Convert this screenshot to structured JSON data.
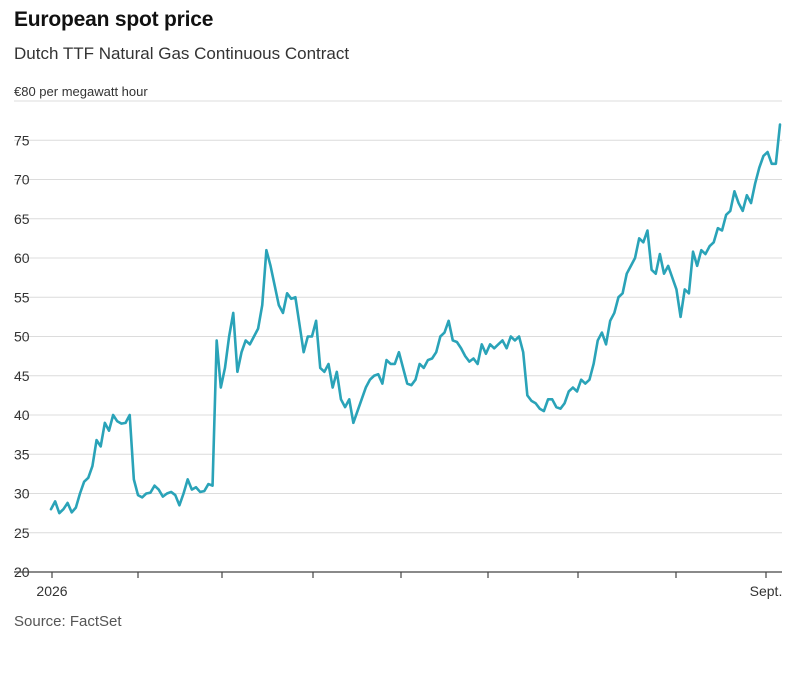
{
  "header": {
    "title": "European spot price",
    "subtitle": "Dutch TTF Natural Gas Continuous Contract",
    "unit_label": "€80 per megawatt hour"
  },
  "footer": {
    "source": "Source: FactSet"
  },
  "colors": {
    "line": "#2aa3b8",
    "grid": "#dcdcdc",
    "axis": "#444444"
  },
  "chart_data": {
    "type": "line",
    "title": "European spot price",
    "subtitle": "Dutch TTF Natural Gas Continuous Contract",
    "ylabel": "",
    "xlabel": "",
    "ylim": [
      20,
      80
    ],
    "yticks": [
      20,
      25,
      30,
      35,
      40,
      45,
      50,
      55,
      60,
      65,
      70,
      75
    ],
    "ytick_labels": [
      "20",
      "25",
      "30",
      "35",
      "40",
      "45",
      "50",
      "55",
      "60",
      "65",
      "70",
      "75"
    ],
    "x_tick_labels": [
      "2026",
      "",
      "",
      "",
      "",
      "",
      "",
      "",
      "Sept."
    ],
    "grid": true,
    "series": [
      {
        "values": [
          28.0,
          29.0,
          27.5,
          28.0,
          28.8,
          27.6,
          28.2,
          30.0,
          31.5,
          32.0,
          33.5,
          36.8,
          36.0,
          39.0,
          38.0,
          40.0,
          39.2,
          38.9,
          39.0,
          40.0,
          31.8,
          29.8,
          29.5,
          30.0,
          30.1,
          31.0,
          30.5,
          29.6,
          30.0,
          30.2,
          29.8,
          28.5,
          30.0,
          31.8,
          30.5,
          30.8,
          30.2,
          30.3,
          31.2,
          31.0,
          49.5,
          43.5,
          46.0,
          50.0,
          53.0,
          45.5,
          48.0,
          49.5,
          49.0,
          50.0,
          51.0,
          54.0,
          61.0,
          59.0,
          56.5,
          54.0,
          53.0,
          55.5,
          54.8,
          55.0,
          51.5,
          48.0,
          50.0,
          50.0,
          52.0,
          46.0,
          45.5,
          46.5,
          43.5,
          45.5,
          42.0,
          41.0,
          42.0,
          39.0,
          40.5,
          42.0,
          43.5,
          44.5,
          45.0,
          45.2,
          44.0,
          47.0,
          46.5,
          46.5,
          48.0,
          46.0,
          44.0,
          43.8,
          44.5,
          46.5,
          46.0,
          47.0,
          47.2,
          48.0,
          50.0,
          50.5,
          52.0,
          49.5,
          49.3,
          48.5,
          47.5,
          46.8,
          47.2,
          46.5,
          49.0,
          47.8,
          49.0,
          48.5,
          49.0,
          49.5,
          48.5,
          50.0,
          49.5,
          50.0,
          48.0,
          42.5,
          41.8,
          41.5,
          40.8,
          40.5,
          42.0,
          42.0,
          41.0,
          40.8,
          41.5,
          43.0,
          43.5,
          43.0,
          44.5,
          44.0,
          44.5,
          46.5,
          49.5,
          50.5,
          49.0,
          52.0,
          53.0,
          55.0,
          55.5,
          58.0,
          59.0,
          60.0,
          62.5,
          62.0,
          63.5,
          58.5,
          58.0,
          60.5,
          58.0,
          59.0,
          57.5,
          56.0,
          52.5,
          56.0,
          55.5,
          60.8,
          59.0,
          61.0,
          60.5,
          61.5,
          62.0,
          63.8,
          63.5,
          65.5,
          66.0,
          68.5,
          67.0,
          66.0,
          68.0,
          67.0,
          69.5,
          71.5,
          73.0,
          73.5,
          72.0,
          72.0,
          77.0
        ]
      }
    ]
  }
}
